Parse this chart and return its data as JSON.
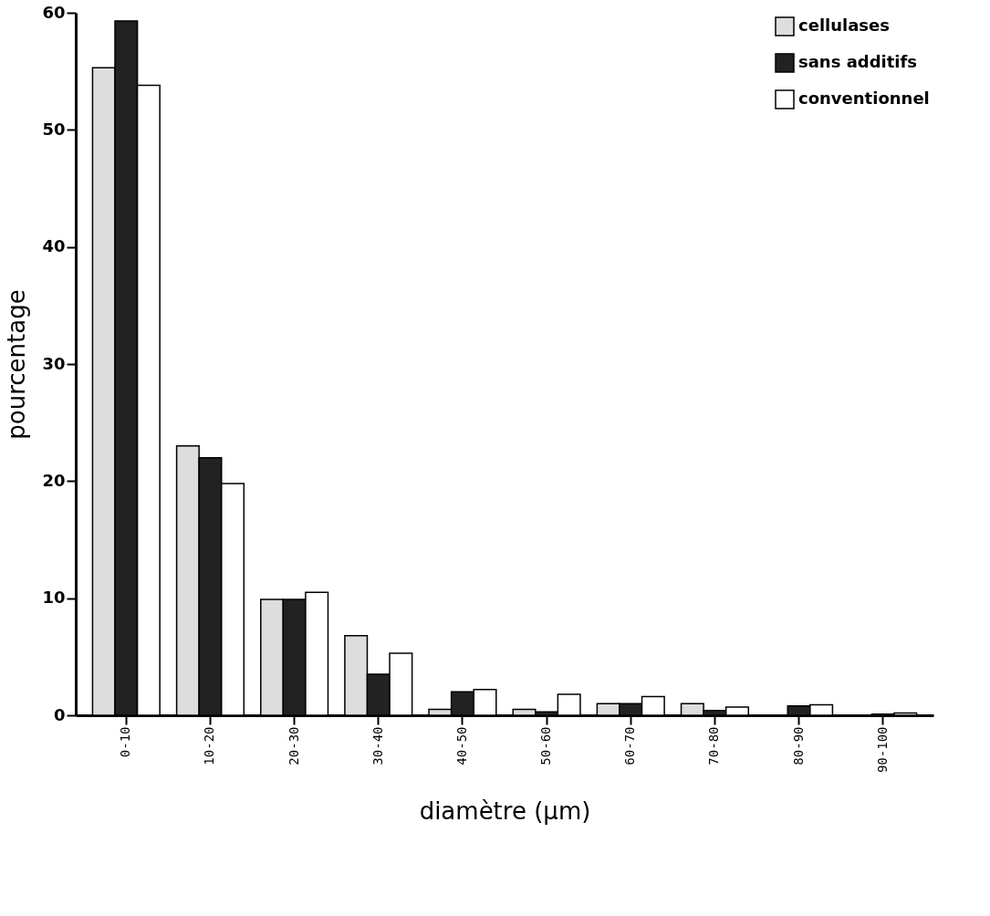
{
  "chart_data": {
    "type": "bar",
    "xlabel": "diamètre (µm)",
    "ylabel": "pourcentage",
    "categories": [
      "0-10",
      "10-20",
      "20-30",
      "30-40",
      "40-50",
      "50-60",
      "60-70",
      "70-80",
      "80-90",
      "90-100"
    ],
    "series": [
      {
        "name": "cellulases",
        "color": "#dddddd",
        "values": [
          55.3,
          23.0,
          9.9,
          6.8,
          0.5,
          0.5,
          1.0,
          1.0,
          0,
          0
        ]
      },
      {
        "name": "sans additifs",
        "color": "#222222",
        "values": [
          59.3,
          22.0,
          9.9,
          3.5,
          2.0,
          0.3,
          1.0,
          0.4,
          0.8,
          0.1
        ]
      },
      {
        "name": "conventionnel",
        "color": "#ffffff",
        "values": [
          53.8,
          19.8,
          10.5,
          5.3,
          2.2,
          1.8,
          1.6,
          0.7,
          0.9,
          0.2
        ]
      }
    ],
    "ylim": [
      0,
      60
    ],
    "yticks": [
      0,
      10,
      20,
      30,
      40,
      50,
      60
    ],
    "grid": false,
    "legend": "top right"
  }
}
